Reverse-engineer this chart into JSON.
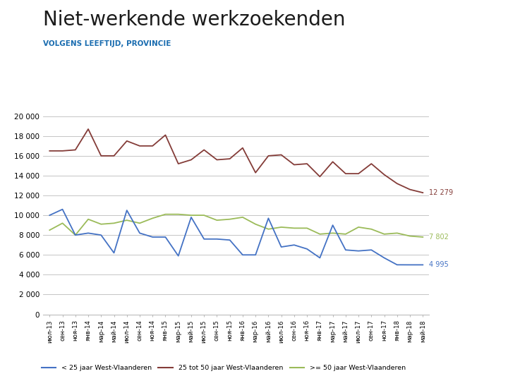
{
  "title": "Niet-werkende werkzoekenden",
  "subtitle": "VOLGENS LEEFTIJD, PROVINCIE",
  "x_labels_display": [
    "июл-13",
    "сен-13",
    "ноя-13",
    "янв-14",
    "мар-14",
    "май-14",
    "июл-14",
    "сен-14",
    "ноя-14",
    "янв-15",
    "мар-15",
    "май-15",
    "июл-15",
    "сен-15",
    "ноя-15",
    "янв-16",
    "мар-16",
    "май-16",
    "июл-16",
    "сен-16",
    "ноя-16",
    "янв-17",
    "мар-17",
    "май-17",
    "июл-17",
    "сен-17",
    "ноя-17",
    "янв-18",
    "мар-18",
    "май-18"
  ],
  "series_blue": [
    10000,
    10600,
    8000,
    8200,
    8000,
    6200,
    10500,
    8200,
    7800,
    7800,
    5900,
    9800,
    7600,
    7600,
    7500,
    6000,
    6000,
    9700,
    6800,
    7000,
    6600,
    5700,
    9000,
    6500,
    6400,
    6500,
    5700,
    5000,
    4995,
    4995
  ],
  "series_red": [
    16500,
    16500,
    16600,
    18700,
    16000,
    16000,
    17500,
    17000,
    17000,
    18100,
    15200,
    15600,
    16600,
    15600,
    15700,
    16800,
    14300,
    16000,
    16100,
    15100,
    15200,
    13900,
    15400,
    14200,
    14200,
    15200,
    14100,
    13200,
    12600,
    12279
  ],
  "series_green": [
    8500,
    9200,
    8000,
    9600,
    9100,
    9200,
    9500,
    9200,
    9700,
    10100,
    10100,
    10000,
    10000,
    9500,
    9600,
    9800,
    9100,
    8600,
    8800,
    8700,
    8700,
    8100,
    8200,
    8100,
    8800,
    8600,
    8100,
    8200,
    7900,
    7802
  ],
  "color_blue": "#4472C4",
  "color_red": "#843C38",
  "color_green": "#9BBB59",
  "label_blue": "< 25 jaar West-Vlaanderen",
  "label_red": "25 tot 50 jaar West-Vlaanderen",
  "label_green": ">= 50 jaar West-Vlaanderen",
  "ylim": [
    0,
    20000
  ],
  "yticks": [
    0,
    2000,
    4000,
    6000,
    8000,
    10000,
    12000,
    14000,
    16000,
    18000,
    20000
  ],
  "end_label_blue": "4 995",
  "end_label_red": "12 279",
  "end_label_green": "7 802",
  "bg_color": "#FFFFFF",
  "grid_color": "#BBBBBB",
  "vdab_blue": "#1B6DB0",
  "title_color": "#333333",
  "subtitle_color": "#1B6DB0"
}
